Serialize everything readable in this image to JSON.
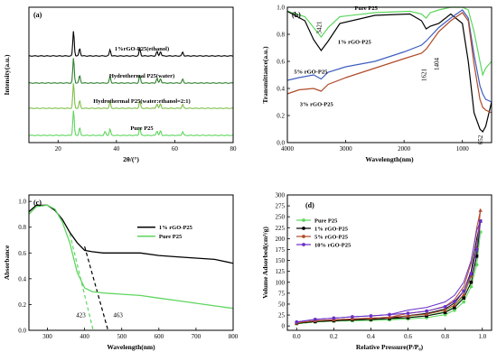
{
  "chart_data": [
    {
      "panel": "(a)",
      "type": "line",
      "xlabel": "2θ/(°)",
      "ylabel": "Intensity(a.u.)",
      "xlim": [
        10,
        80
      ],
      "xticks": [
        20,
        40,
        60,
        80
      ],
      "series": [
        {
          "name": "Pure P25",
          "color": "#5ed65e",
          "offset": 3,
          "peaks": [
            [
              25.3,
              1.0
            ],
            [
              37.8,
              0.25
            ],
            [
              48.0,
              0.3
            ],
            [
              53.9,
              0.18
            ],
            [
              55.1,
              0.18
            ],
            [
              62.7,
              0.15
            ],
            [
              27.4,
              0.3
            ],
            [
              36.1,
              0.15
            ]
          ]
        },
        {
          "name": "Hydrothermal P25(water:ethanol=2:1)",
          "color": "#7fbf4a",
          "offset": 2,
          "peaks": [
            [
              25.3,
              1.0
            ],
            [
              37.8,
              0.25
            ],
            [
              48.0,
              0.3
            ],
            [
              53.9,
              0.18
            ],
            [
              55.1,
              0.18
            ],
            [
              62.7,
              0.15
            ],
            [
              27.4,
              0.3
            ]
          ]
        },
        {
          "name": "Hydrothermal P25(water)",
          "color": "#2f7f2f",
          "offset": 1,
          "peaks": [
            [
              25.3,
              1.0
            ],
            [
              37.8,
              0.25
            ],
            [
              48.0,
              0.3
            ],
            [
              53.9,
              0.18
            ],
            [
              55.1,
              0.18
            ],
            [
              62.7,
              0.15
            ],
            [
              27.4,
              0.3
            ]
          ]
        },
        {
          "name": "1%rGO-P25(ethanol)",
          "color": "#000000",
          "offset": 0,
          "peaks": [
            [
              25.3,
              1.0
            ],
            [
              37.8,
              0.25
            ],
            [
              48.0,
              0.3
            ],
            [
              53.9,
              0.18
            ],
            [
              55.1,
              0.18
            ],
            [
              62.7,
              0.15
            ],
            [
              27.4,
              0.3
            ]
          ]
        }
      ]
    },
    {
      "panel": "(b)",
      "type": "line",
      "xlabel": "Wavelength(nm)",
      "ylabel": "Transmittance(a.u.)",
      "xlim": [
        4000,
        500
      ],
      "ylim": [
        0,
        1.0
      ],
      "xticks": [
        4000,
        3000,
        2000,
        1000
      ],
      "yticks": [
        0.0,
        0.2,
        0.4,
        0.6,
        0.8,
        1.0
      ],
      "annotations": [
        "3421",
        "1621",
        "1404",
        "652"
      ],
      "series": [
        {
          "name": "Pure P25",
          "color": "#5ed65e",
          "points": [
            [
              4000,
              0.97
            ],
            [
              3700,
              0.93
            ],
            [
              3550,
              0.85
            ],
            [
              3421,
              0.78
            ],
            [
              3300,
              0.85
            ],
            [
              3100,
              0.93
            ],
            [
              2500,
              0.96
            ],
            [
              1900,
              0.97
            ],
            [
              1700,
              0.95
            ],
            [
              1621,
              0.92
            ],
            [
              1550,
              0.96
            ],
            [
              1404,
              0.98
            ],
            [
              1200,
              1.0
            ],
            [
              1000,
              1.0
            ],
            [
              900,
              0.98
            ],
            [
              800,
              0.82
            ],
            [
              700,
              0.6
            ],
            [
              652,
              0.5
            ],
            [
              600,
              0.55
            ],
            [
              500,
              0.6
            ]
          ]
        },
        {
          "name": "1% rGO-P25",
          "color": "#000000",
          "points": [
            [
              4000,
              0.97
            ],
            [
              3700,
              0.9
            ],
            [
              3550,
              0.76
            ],
            [
              3421,
              0.68
            ],
            [
              3300,
              0.75
            ],
            [
              3100,
              0.88
            ],
            [
              2500,
              0.94
            ],
            [
              1900,
              0.95
            ],
            [
              1700,
              0.9
            ],
            [
              1621,
              0.84
            ],
            [
              1550,
              0.86
            ],
            [
              1404,
              0.88
            ],
            [
              1200,
              0.95
            ],
            [
              1000,
              0.88
            ],
            [
              900,
              0.6
            ],
            [
              800,
              0.22
            ],
            [
              700,
              0.1
            ],
            [
              652,
              0.08
            ],
            [
              600,
              0.12
            ],
            [
              500,
              0.3
            ]
          ]
        },
        {
          "name": "5% rGO-P25",
          "color": "#3f5fbf",
          "points": [
            [
              4000,
              0.46
            ],
            [
              3800,
              0.48
            ],
            [
              3550,
              0.5
            ],
            [
              3421,
              0.47
            ],
            [
              3300,
              0.52
            ],
            [
              3000,
              0.56
            ],
            [
              2500,
              0.6
            ],
            [
              2000,
              0.67
            ],
            [
              1700,
              0.72
            ],
            [
              1621,
              0.75
            ],
            [
              1404,
              0.85
            ],
            [
              1200,
              0.92
            ],
            [
              1000,
              0.98
            ],
            [
              900,
              0.92
            ],
            [
              800,
              0.65
            ],
            [
              700,
              0.42
            ],
            [
              652,
              0.36
            ],
            [
              600,
              0.32
            ],
            [
              500,
              0.3
            ]
          ]
        },
        {
          "name": "3% rGO-P25",
          "color": "#b04a2a",
          "points": [
            [
              4000,
              0.36
            ],
            [
              3800,
              0.39
            ],
            [
              3550,
              0.4
            ],
            [
              3421,
              0.38
            ],
            [
              3300,
              0.43
            ],
            [
              3000,
              0.48
            ],
            [
              2500,
              0.55
            ],
            [
              2000,
              0.62
            ],
            [
              1700,
              0.66
            ],
            [
              1621,
              0.69
            ],
            [
              1404,
              0.82
            ],
            [
              1200,
              0.9
            ],
            [
              1000,
              0.96
            ],
            [
              900,
              0.9
            ],
            [
              800,
              0.58
            ],
            [
              700,
              0.32
            ],
            [
              652,
              0.26
            ],
            [
              600,
              0.24
            ],
            [
              500,
              0.22
            ]
          ]
        }
      ]
    },
    {
      "panel": "(c)",
      "type": "line",
      "xlabel": "Wavelength(nm)",
      "ylabel": "Absorbance",
      "xlim": [
        250,
        800
      ],
      "ylim": [
        0.0,
        1.05
      ],
      "xticks": [
        300,
        400,
        500,
        600,
        700,
        800
      ],
      "yticks": [
        0.0,
        0.2,
        0.4,
        0.6,
        0.8,
        1.0
      ],
      "annotations": [
        "423",
        "463"
      ],
      "series": [
        {
          "name": "1% rGO-P25",
          "color": "#000000",
          "points": [
            [
              250,
              0.92
            ],
            [
              270,
              0.97
            ],
            [
              300,
              0.97
            ],
            [
              320,
              0.93
            ],
            [
              340,
              0.86
            ],
            [
              360,
              0.76
            ],
            [
              380,
              0.68
            ],
            [
              400,
              0.62
            ],
            [
              420,
              0.61
            ],
            [
              450,
              0.6
            ],
            [
              500,
              0.6
            ],
            [
              550,
              0.6
            ],
            [
              600,
              0.58
            ],
            [
              650,
              0.57
            ],
            [
              700,
              0.56
            ],
            [
              750,
              0.55
            ],
            [
              800,
              0.52
            ]
          ],
          "tangent": [
            [
              400,
              0.65
            ],
            [
              463,
              0.0
            ]
          ]
        },
        {
          "name": "Pure P25",
          "color": "#5ed65e",
          "points": [
            [
              250,
              0.9
            ],
            [
              270,
              0.96
            ],
            [
              300,
              0.97
            ],
            [
              320,
              0.94
            ],
            [
              340,
              0.84
            ],
            [
              360,
              0.68
            ],
            [
              380,
              0.45
            ],
            [
              400,
              0.33
            ],
            [
              420,
              0.3
            ],
            [
              450,
              0.29
            ],
            [
              500,
              0.28
            ],
            [
              550,
              0.27
            ],
            [
              600,
              0.25
            ],
            [
              650,
              0.23
            ],
            [
              700,
              0.21
            ],
            [
              750,
              0.19
            ],
            [
              800,
              0.17
            ]
          ],
          "tangent": [
            [
              360,
              0.75
            ],
            [
              423,
              0.0
            ]
          ]
        }
      ]
    },
    {
      "panel": "(d)",
      "type": "line",
      "xlabel": "Relative Pressure(P/P₀)",
      "ylabel": "Volume Adsorbed(cm³/g)",
      "xlim": [
        -0.05,
        1.05
      ],
      "ylim": [
        -10,
        300
      ],
      "xticks": [
        0.0,
        0.2,
        0.4,
        0.6,
        0.8,
        1.0
      ],
      "yticks": [
        0,
        25,
        50,
        75,
        100,
        125,
        150,
        175,
        200,
        225,
        250,
        275,
        300
      ],
      "series": [
        {
          "name": "Pure P25",
          "color": "#5ed65e",
          "marker": "circle",
          "points": [
            [
              0.0,
              5
            ],
            [
              0.1,
              9
            ],
            [
              0.2,
              11
            ],
            [
              0.3,
              12
            ],
            [
              0.4,
              13
            ],
            [
              0.5,
              14
            ],
            [
              0.6,
              16
            ],
            [
              0.7,
              19
            ],
            [
              0.8,
              26
            ],
            [
              0.85,
              36
            ],
            [
              0.9,
              55
            ],
            [
              0.94,
              90
            ],
            [
              0.97,
              140
            ],
            [
              0.99,
              215
            ]
          ]
        },
        {
          "name": "1% rGO-P25",
          "color": "#000000",
          "marker": "square",
          "points": [
            [
              0.0,
              6
            ],
            [
              0.1,
              10
            ],
            [
              0.2,
              12
            ],
            [
              0.3,
              14
            ],
            [
              0.4,
              15
            ],
            [
              0.5,
              17
            ],
            [
              0.6,
              19
            ],
            [
              0.7,
              23
            ],
            [
              0.8,
              31
            ],
            [
              0.85,
              42
            ],
            [
              0.9,
              64
            ],
            [
              0.94,
              100
            ],
            [
              0.97,
              160
            ],
            [
              0.99,
              240
            ]
          ]
        },
        {
          "name": "5% rGO-P25",
          "color": "#b04a2a",
          "marker": "triangle",
          "points": [
            [
              0.0,
              7
            ],
            [
              0.1,
              12
            ],
            [
              0.2,
              14
            ],
            [
              0.3,
              16
            ],
            [
              0.4,
              18
            ],
            [
              0.5,
              20
            ],
            [
              0.6,
              23
            ],
            [
              0.7,
              27
            ],
            [
              0.8,
              36
            ],
            [
              0.85,
              48
            ],
            [
              0.9,
              72
            ],
            [
              0.94,
              115
            ],
            [
              0.97,
              180
            ],
            [
              0.99,
              265
            ]
          ]
        },
        {
          "name": "10% rGO-P25",
          "color": "#6a2fc8",
          "marker": "circle",
          "points": [
            [
              0.0,
              9
            ],
            [
              0.1,
              15
            ],
            [
              0.2,
              18
            ],
            [
              0.3,
              21
            ],
            [
              0.4,
              23
            ],
            [
              0.5,
              26
            ],
            [
              0.6,
              29
            ],
            [
              0.7,
              34
            ],
            [
              0.8,
              44
            ],
            [
              0.85,
              56
            ],
            [
              0.9,
              80
            ],
            [
              0.94,
              120
            ],
            [
              0.97,
              175
            ],
            [
              0.99,
              240
            ]
          ]
        }
      ]
    }
  ]
}
